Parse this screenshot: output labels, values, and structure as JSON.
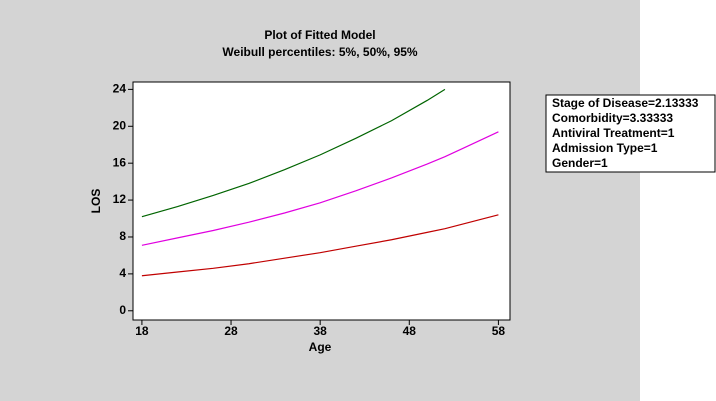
{
  "chart_data": {
    "type": "line",
    "title": "Plot of Fitted Model",
    "subtitle": "Weibull percentiles: 5%,  50%,  95%",
    "x_label": "Age",
    "y_label": "LOS",
    "x": [
      18,
      22,
      26,
      30,
      34,
      38,
      42,
      46,
      50,
      52,
      54,
      58
    ],
    "series": [
      {
        "color": "#c00000",
        "values": [
          3.8,
          4.2,
          4.6,
          5.1,
          5.7,
          6.3,
          7.0,
          7.7,
          8.5,
          8.9,
          9.4,
          10.4
        ]
      },
      {
        "color": "#e000e0",
        "values": [
          7.1,
          7.9,
          8.7,
          9.6,
          10.6,
          11.7,
          13.0,
          14.4,
          15.9,
          16.7,
          17.6,
          19.4
        ]
      },
      {
        "color": "#006400",
        "values": [
          10.2,
          11.3,
          12.5,
          13.8,
          15.3,
          16.9,
          18.7,
          20.6,
          22.8,
          24.0,
          null,
          null
        ]
      }
    ],
    "xlim": [
      17,
      59.3
    ],
    "xticks": [
      18,
      28,
      38,
      48,
      58
    ],
    "ylim": [
      -1,
      24.8
    ],
    "yticks": [
      0,
      4,
      8,
      12,
      16,
      20,
      24
    ],
    "annotations": [
      "Stage of Disease=2.13333",
      "Comorbidity=3.33333",
      "Antiviral Treatment=1",
      "Admission Type=1",
      "Gender=1"
    ]
  }
}
